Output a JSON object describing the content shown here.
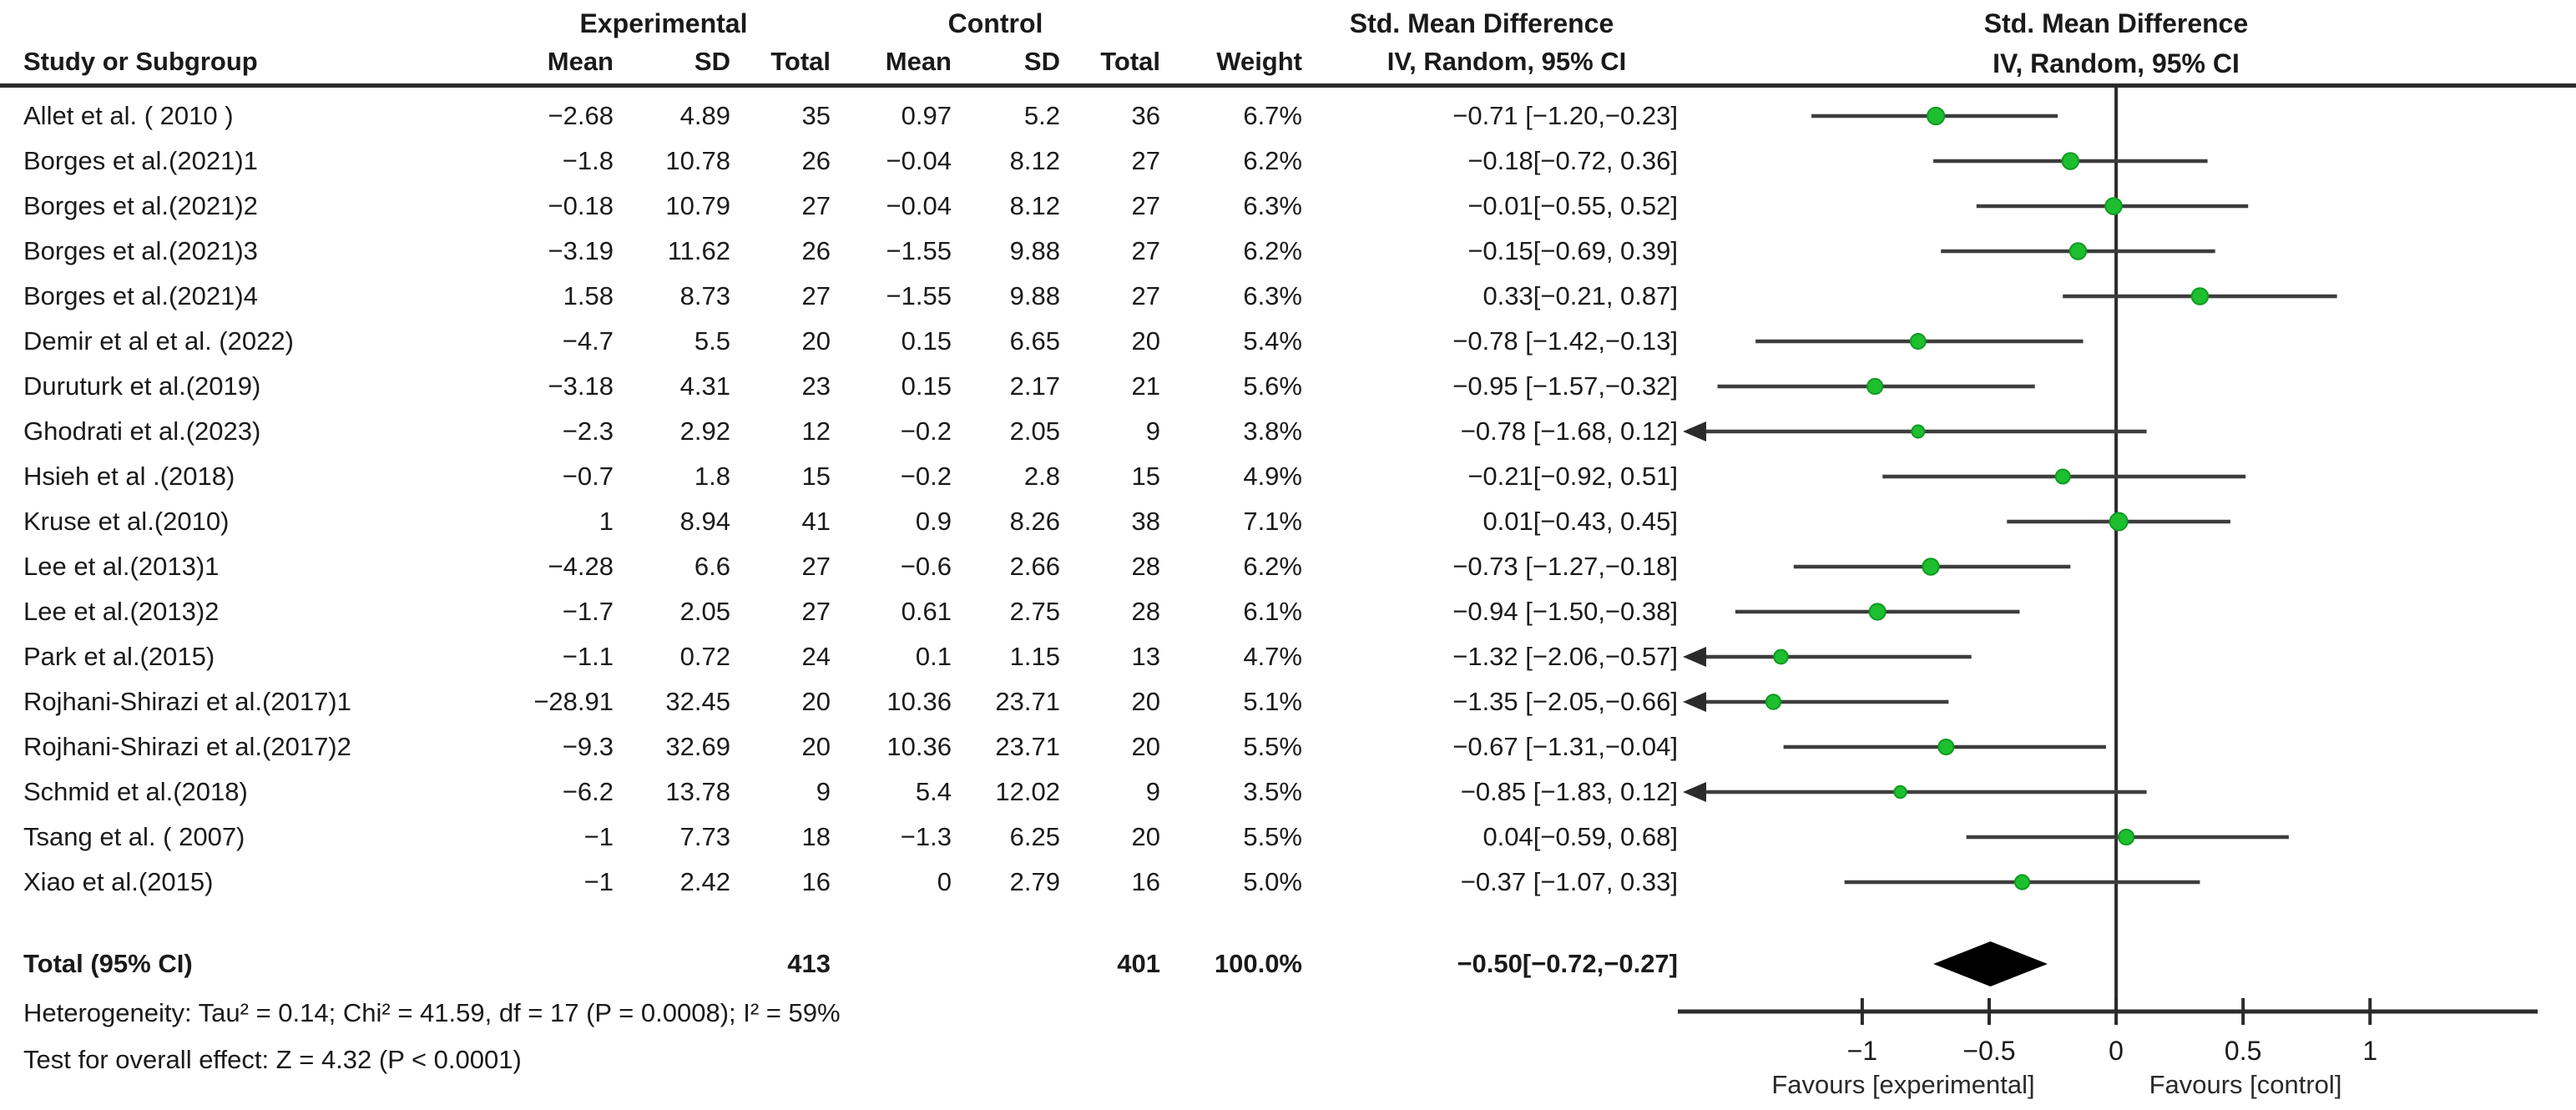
{
  "table": {
    "headers": {
      "group_experimental": "Experimental",
      "group_control": "Control",
      "smd_left": "Std. Mean Difference",
      "smd_right": "Std. Mean Difference",
      "study": "Study or Subgroup",
      "e_mean": "Mean",
      "e_sd": "SD",
      "e_total": "Total",
      "c_mean": "Mean",
      "c_sd": "SD",
      "c_total": "Total",
      "weight": "Weight",
      "ci_method_left": "IV, Random, 95% CI",
      "ci_method_right": "IV, Random, 95% CI"
    },
    "rows": [
      {
        "study": "Allet et al. ( 2010 )",
        "e_mean": "−2.68",
        "e_sd": "4.89",
        "e_total": "35",
        "c_mean": "0.97",
        "c_sd": "5.2",
        "c_total": "36",
        "weight": "6.7%",
        "ci": "−0.71 [−1.20,−0.23]"
      },
      {
        "study": "Borges et al.(2021)1",
        "e_mean": "−1.8",
        "e_sd": "10.78",
        "e_total": "26",
        "c_mean": "−0.04",
        "c_sd": "8.12",
        "c_total": "27",
        "weight": "6.2%",
        "ci": "−0.18[−0.72, 0.36]"
      },
      {
        "study": "Borges et al.(2021)2",
        "e_mean": "−0.18",
        "e_sd": "10.79",
        "e_total": "27",
        "c_mean": "−0.04",
        "c_sd": "8.12",
        "c_total": "27",
        "weight": "6.3%",
        "ci": "−0.01[−0.55, 0.52]"
      },
      {
        "study": "Borges et al.(2021)3",
        "e_mean": "−3.19",
        "e_sd": "11.62",
        "e_total": "26",
        "c_mean": "−1.55",
        "c_sd": "9.88",
        "c_total": "27",
        "weight": "6.2%",
        "ci": "−0.15[−0.69, 0.39]"
      },
      {
        "study": "Borges et al.(2021)4",
        "e_mean": "1.58",
        "e_sd": "8.73",
        "e_total": "27",
        "c_mean": "−1.55",
        "c_sd": "9.88",
        "c_total": "27",
        "weight": "6.3%",
        "ci": "0.33[−0.21, 0.87]"
      },
      {
        "study": "Demir et al et al. (2022)",
        "e_mean": "−4.7",
        "e_sd": "5.5",
        "e_total": "20",
        "c_mean": "0.15",
        "c_sd": "6.65",
        "c_total": "20",
        "weight": "5.4%",
        "ci": "−0.78 [−1.42,−0.13]"
      },
      {
        "study": "Duruturk et al.(2019)",
        "e_mean": "−3.18",
        "e_sd": "4.31",
        "e_total": "23",
        "c_mean": "0.15",
        "c_sd": "2.17",
        "c_total": "21",
        "weight": "5.6%",
        "ci": "−0.95 [−1.57,−0.32]"
      },
      {
        "study": "Ghodrati et al.(2023)",
        "e_mean": "−2.3",
        "e_sd": "2.92",
        "e_total": "12",
        "c_mean": "−0.2",
        "c_sd": "2.05",
        "c_total": "9",
        "weight": "3.8%",
        "ci": "−0.78 [−1.68, 0.12]"
      },
      {
        "study": "Hsieh et al .(2018)",
        "e_mean": "−0.7",
        "e_sd": "1.8",
        "e_total": "15",
        "c_mean": "−0.2",
        "c_sd": "2.8",
        "c_total": "15",
        "weight": "4.9%",
        "ci": "−0.21[−0.92, 0.51]"
      },
      {
        "study": "Kruse et al.(2010)",
        "e_mean": "1",
        "e_sd": "8.94",
        "e_total": "41",
        "c_mean": "0.9",
        "c_sd": "8.26",
        "c_total": "38",
        "weight": "7.1%",
        "ci": "0.01[−0.43, 0.45]"
      },
      {
        "study": "Lee et al.(2013)1",
        "e_mean": "−4.28",
        "e_sd": "6.6",
        "e_total": "27",
        "c_mean": "−0.6",
        "c_sd": "2.66",
        "c_total": "28",
        "weight": "6.2%",
        "ci": "−0.73 [−1.27,−0.18]"
      },
      {
        "study": "Lee et al.(2013)2",
        "e_mean": "−1.7",
        "e_sd": "2.05",
        "e_total": "27",
        "c_mean": "0.61",
        "c_sd": "2.75",
        "c_total": "28",
        "weight": "6.1%",
        "ci": "−0.94 [−1.50,−0.38]"
      },
      {
        "study": "Park et al.(2015)",
        "e_mean": "−1.1",
        "e_sd": "0.72",
        "e_total": "24",
        "c_mean": "0.1",
        "c_sd": "1.15",
        "c_total": "13",
        "weight": "4.7%",
        "ci": "−1.32 [−2.06,−0.57]"
      },
      {
        "study": "Rojhani-Shirazi et al.(2017)1",
        "e_mean": "−28.91",
        "e_sd": "32.45",
        "e_total": "20",
        "c_mean": "10.36",
        "c_sd": "23.71",
        "c_total": "20",
        "weight": "5.1%",
        "ci": "−1.35 [−2.05,−0.66]"
      },
      {
        "study": "Rojhani-Shirazi et al.(2017)2",
        "e_mean": "−9.3",
        "e_sd": "32.69",
        "e_total": "20",
        "c_mean": "10.36",
        "c_sd": "23.71",
        "c_total": "20",
        "weight": "5.5%",
        "ci": "−0.67 [−1.31,−0.04]"
      },
      {
        "study": "Schmid et al.(2018)",
        "e_mean": "−6.2",
        "e_sd": "13.78",
        "e_total": "9",
        "c_mean": "5.4",
        "c_sd": "12.02",
        "c_total": "9",
        "weight": "3.5%",
        "ci": "−0.85 [−1.83, 0.12]"
      },
      {
        "study": "Tsang et al. ( 2007)",
        "e_mean": "−1",
        "e_sd": "7.73",
        "e_total": "18",
        "c_mean": "−1.3",
        "c_sd": "6.25",
        "c_total": "20",
        "weight": "5.5%",
        "ci": "0.04[−0.59, 0.68]"
      },
      {
        "study": "Xiao et al.(2015)",
        "e_mean": "−1",
        "e_sd": "2.42",
        "e_total": "16",
        "c_mean": "0",
        "c_sd": "2.79",
        "c_total": "16",
        "weight": "5.0%",
        "ci": "−0.37 [−1.07, 0.33]"
      }
    ],
    "total": {
      "label": "Total (95% CI)",
      "e_total": "413",
      "c_total": "401",
      "weight": "100.0%",
      "ci": "−0.50[−0.72,−0.27]"
    },
    "footnotes": {
      "heterogeneity": "Heterogeneity: Tau² = 0.14; Chi² = 41.59, df = 17 (P = 0.0008); I² = 59%",
      "overall_effect": "Test for overall effect: Z = 4.32 (P < 0.0001)"
    }
  },
  "chart_data": {
    "type": "forest",
    "title": "Std. Mean Difference  IV, Random, 95% CI",
    "xlabel_left": "Favours [experimental]",
    "xlabel_right": "Favours [control]",
    "xticks": [
      {
        "v": -1,
        "label": "−1"
      },
      {
        "v": -0.5,
        "label": "−0.5"
      },
      {
        "v": 0,
        "label": "0"
      },
      {
        "v": 0.5,
        "label": "0.5"
      },
      {
        "v": 1,
        "label": "1"
      }
    ],
    "visible_range": [
      -1.7,
      1.66
    ],
    "studies": [
      {
        "name": "Allet et al. ( 2010 )",
        "est": -0.71,
        "lo": -1.2,
        "hi": -0.23,
        "weight_pct": 6.7,
        "clipped_left": false
      },
      {
        "name": "Borges et al.(2021)1",
        "est": -0.18,
        "lo": -0.72,
        "hi": 0.36,
        "weight_pct": 6.2,
        "clipped_left": false
      },
      {
        "name": "Borges et al.(2021)2",
        "est": -0.01,
        "lo": -0.55,
        "hi": 0.52,
        "weight_pct": 6.3,
        "clipped_left": false
      },
      {
        "name": "Borges et al.(2021)3",
        "est": -0.15,
        "lo": -0.69,
        "hi": 0.39,
        "weight_pct": 6.2,
        "clipped_left": false
      },
      {
        "name": "Borges et al.(2021)4",
        "est": 0.33,
        "lo": -0.21,
        "hi": 0.87,
        "weight_pct": 6.3,
        "clipped_left": false
      },
      {
        "name": "Demir et al et al. (2022)",
        "est": -0.78,
        "lo": -1.42,
        "hi": -0.13,
        "weight_pct": 5.4,
        "clipped_left": false
      },
      {
        "name": "Duruturk et al.(2019)",
        "est": -0.95,
        "lo": -1.57,
        "hi": -0.32,
        "weight_pct": 5.6,
        "clipped_left": false
      },
      {
        "name": "Ghodrati et al.(2023)",
        "est": -0.78,
        "lo": -1.68,
        "hi": 0.12,
        "weight_pct": 3.8,
        "clipped_left": true
      },
      {
        "name": "Hsieh et al .(2018)",
        "est": -0.21,
        "lo": -0.92,
        "hi": 0.51,
        "weight_pct": 4.9,
        "clipped_left": false
      },
      {
        "name": "Kruse et al.(2010)",
        "est": 0.01,
        "lo": -0.43,
        "hi": 0.45,
        "weight_pct": 7.1,
        "clipped_left": false
      },
      {
        "name": "Lee et al.(2013)1",
        "est": -0.73,
        "lo": -1.27,
        "hi": -0.18,
        "weight_pct": 6.2,
        "clipped_left": false
      },
      {
        "name": "Lee et al.(2013)2",
        "est": -0.94,
        "lo": -1.5,
        "hi": -0.38,
        "weight_pct": 6.1,
        "clipped_left": false
      },
      {
        "name": "Park et al.(2015)",
        "est": -1.32,
        "lo": -2.06,
        "hi": -0.57,
        "weight_pct": 4.7,
        "clipped_left": true
      },
      {
        "name": "Rojhani-Shirazi et al.(2017)1",
        "est": -1.35,
        "lo": -2.05,
        "hi": -0.66,
        "weight_pct": 5.1,
        "clipped_left": true
      },
      {
        "name": "Rojhani-Shirazi et al.(2017)2",
        "est": -0.67,
        "lo": -1.31,
        "hi": -0.04,
        "weight_pct": 5.5,
        "clipped_left": false
      },
      {
        "name": "Schmid et al.(2018)",
        "est": -0.85,
        "lo": -1.83,
        "hi": 0.12,
        "weight_pct": 3.5,
        "clipped_left": true
      },
      {
        "name": "Tsang et al. ( 2007)",
        "est": 0.04,
        "lo": -0.59,
        "hi": 0.68,
        "weight_pct": 5.5,
        "clipped_left": false
      },
      {
        "name": "Xiao et al.(2015)",
        "est": -0.37,
        "lo": -1.07,
        "hi": 0.33,
        "weight_pct": 5.0,
        "clipped_left": false
      }
    ],
    "total": {
      "est": -0.5,
      "lo": -0.72,
      "hi": -0.27
    },
    "legend_position": "none",
    "grid": false,
    "marker_color": "#1dbf2e",
    "marker_edge_color": "#0f9a22",
    "line_color": "#3d3d3d",
    "diamond_color": "#000000",
    "axis_color": "#2b2b2b"
  }
}
